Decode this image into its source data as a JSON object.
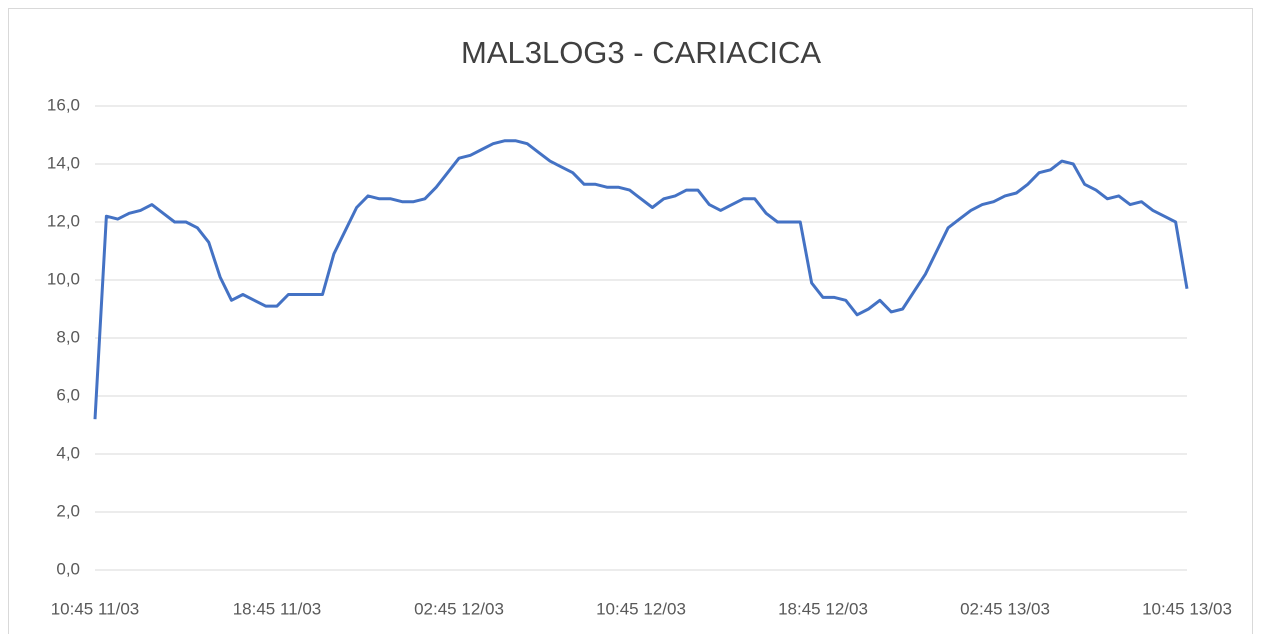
{
  "chart_data": {
    "type": "line",
    "title": "MAL3LOG3 - CARIACICA",
    "categories": [
      "10:45 11/03",
      null,
      null,
      null,
      null,
      null,
      null,
      null,
      null,
      null,
      null,
      null,
      null,
      null,
      null,
      null,
      "18:45 11/03",
      null,
      null,
      null,
      null,
      null,
      null,
      null,
      null,
      null,
      null,
      null,
      null,
      null,
      null,
      null,
      "02:45 12/03",
      null,
      null,
      null,
      null,
      null,
      null,
      null,
      null,
      null,
      null,
      null,
      null,
      null,
      null,
      null,
      "10:45 12/03",
      null,
      null,
      null,
      null,
      null,
      null,
      null,
      null,
      null,
      null,
      null,
      null,
      null,
      null,
      null,
      "18:45 12/03",
      null,
      null,
      null,
      null,
      null,
      null,
      null,
      null,
      null,
      null,
      null,
      null,
      null,
      null,
      null,
      "02:45 13/03",
      null,
      null,
      null,
      null,
      null,
      null,
      null,
      null,
      null,
      null,
      null,
      null,
      null,
      null,
      null,
      "10:45 13/03"
    ],
    "series": [
      {
        "name": "MAL3LOG3",
        "color": "#4472c4",
        "values": [
          5.2,
          12.2,
          12.1,
          12.3,
          12.4,
          12.6,
          12.3,
          12.0,
          12.0,
          11.8,
          11.3,
          10.1,
          9.3,
          9.5,
          9.3,
          9.1,
          9.1,
          9.5,
          9.5,
          9.5,
          9.5,
          10.9,
          11.7,
          12.5,
          12.9,
          12.8,
          12.8,
          12.7,
          12.7,
          12.8,
          13.2,
          13.7,
          14.2,
          14.3,
          14.5,
          14.7,
          14.8,
          14.8,
          14.7,
          14.4,
          14.1,
          13.9,
          13.7,
          13.3,
          13.3,
          13.2,
          13.2,
          13.1,
          12.8,
          12.5,
          12.8,
          12.9,
          13.1,
          13.1,
          12.6,
          12.4,
          12.6,
          12.8,
          12.8,
          12.3,
          12.0,
          12.0,
          12.0,
          9.9,
          9.4,
          9.4,
          9.3,
          8.8,
          9.0,
          9.3,
          8.9,
          9.0,
          9.6,
          10.2,
          11.0,
          11.8,
          12.1,
          12.4,
          12.6,
          12.7,
          12.9,
          13.0,
          13.3,
          13.7,
          13.8,
          14.1,
          14.0,
          13.3,
          13.1,
          12.8,
          12.9,
          12.6,
          12.7,
          12.4,
          12.2,
          12.0,
          9.7
        ]
      }
    ],
    "ylim": [
      0,
      16
    ],
    "yticks": [
      {
        "value": 0,
        "label": "0,0"
      },
      {
        "value": 2,
        "label": "2,0"
      },
      {
        "value": 4,
        "label": "4,0"
      },
      {
        "value": 6,
        "label": "6,0"
      },
      {
        "value": 8,
        "label": "8,0"
      },
      {
        "value": 10,
        "label": "10,0"
      },
      {
        "value": 12,
        "label": "12,0"
      },
      {
        "value": 14,
        "label": "14,0"
      },
      {
        "value": 16,
        "label": "16,0"
      }
    ],
    "grid": true
  }
}
